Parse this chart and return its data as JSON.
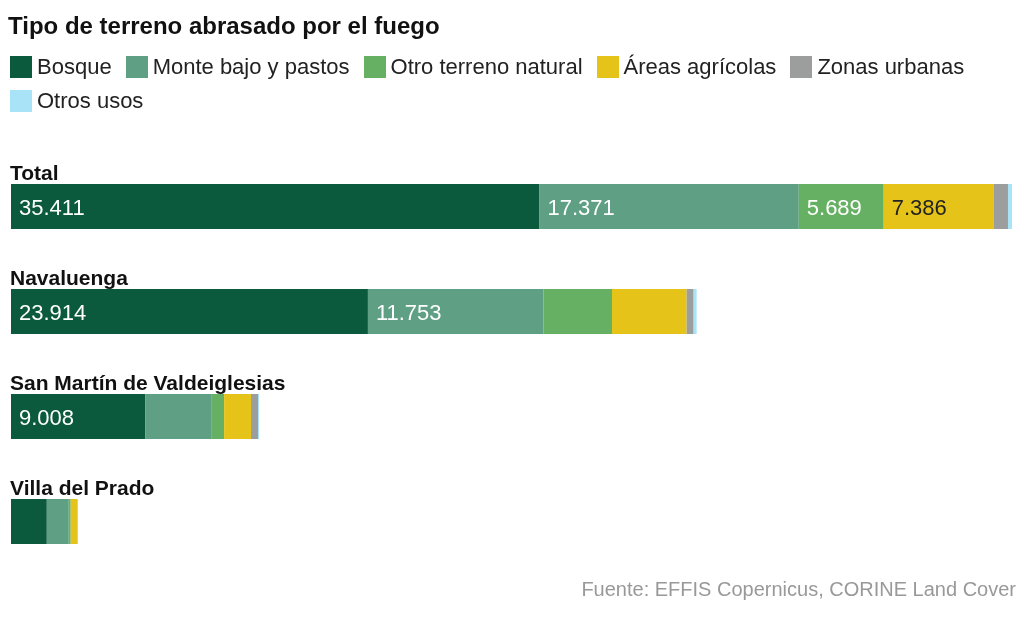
{
  "chart_data": {
    "type": "bar",
    "orientation": "horizontal",
    "stacked": true,
    "title": "Tipo de terreno abrasado por el fuego",
    "legend": "top",
    "categories": [
      "Total",
      "Navaluenga",
      "San Martín de Valdeiglesias",
      "Villa del Prado"
    ],
    "series": [
      {
        "name": "Bosque",
        "color": "#0b5a3e",
        "values": [
          35411,
          23914,
          9008,
          2400
        ],
        "value_labels": [
          "35.411",
          "23.914",
          "9.008",
          null
        ]
      },
      {
        "name": "Monte bajo y pastos",
        "color": "#5fa085",
        "values": [
          17371,
          11753,
          4400,
          1470
        ],
        "value_labels": [
          "17.371",
          "11.753",
          null,
          null
        ]
      },
      {
        "name": "Otro terreno natural",
        "color": "#66b063",
        "values": [
          5689,
          4600,
          870,
          130
        ],
        "value_labels": [
          "5.689",
          null,
          null,
          null
        ]
      },
      {
        "name": "Áreas agrícolas",
        "color": "#e5c319",
        "values": [
          7386,
          5000,
          1800,
          470
        ],
        "value_labels": [
          "7.386",
          null,
          null,
          null
        ]
      },
      {
        "name": "Zonas urbanas",
        "color": "#9c9e9e",
        "values": [
          940,
          470,
          470,
          null
        ]
      },
      {
        "name": "Otros usos",
        "color": "#a9e3f7",
        "values": [
          270,
          200,
          70,
          null
        ]
      }
    ],
    "annotations": [
      "Fuente: EFFIS Copernicus, CORINE Land Cover"
    ]
  }
}
